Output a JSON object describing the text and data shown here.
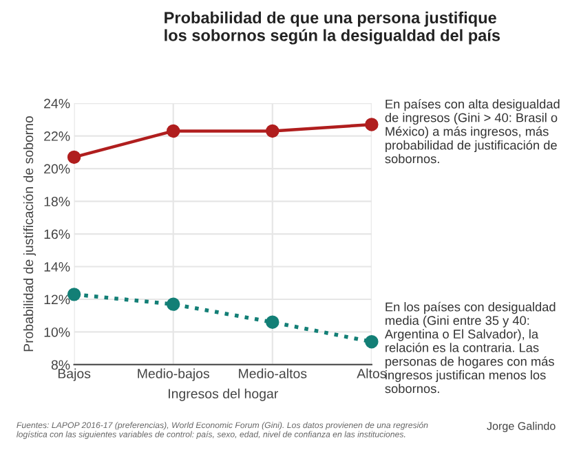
{
  "chart_data": {
    "type": "line",
    "title": "Probabilidad de que una persona justifique\nlos sobornos según la desigualdad del país",
    "xlabel": "Ingresos del hogar",
    "ylabel": "Probabilidad de justificación de soborno",
    "categories": [
      "Bajos",
      "Medio-bajos",
      "Medio-altos",
      "Altos"
    ],
    "series": [
      {
        "color": "#b01e1e",
        "values": [
          20.7,
          22.3,
          22.3,
          22.7
        ],
        "line_style": "solid"
      },
      {
        "color": "#137f76",
        "values": [
          12.3,
          11.7,
          10.6,
          9.4
        ],
        "line_style": "dotted"
      }
    ],
    "ylim": [
      8,
      24
    ],
    "yticks": [
      {
        "value": 8,
        "label": "8%"
      },
      {
        "value": 10,
        "label": "10%"
      },
      {
        "value": 12,
        "label": "12%"
      },
      {
        "value": 14,
        "label": "14%"
      },
      {
        "value": 16,
        "label": "16%"
      },
      {
        "value": 18,
        "label": "18%"
      },
      {
        "value": 20,
        "label": "20%"
      },
      {
        "value": 22,
        "label": "22%"
      },
      {
        "value": 24,
        "label": "24%"
      }
    ],
    "grid": true,
    "marker": "circle",
    "legend": false,
    "annotations": [
      "En países con alta desigualdad de ingresos (Gini > 40: Brasil o México) a más ingresos, más probabilidad de justificación de sobornos.",
      "En los países con desigualdad media (Gini entre 35 y 40: Argentina o El Salvador), la relación es la contraria. Las personas de hogares con más ingresos justifican menos los sobornos.",
      "Fuentes: LAPOP 2016-17 (preferencias), World Economic Forum (Gini). Los datos provienen de una regresión logística con las siguientes variables de control: país, sexo, edad, nivel de confianza en las instituciones.",
      "Jorge Galindo"
    ]
  }
}
